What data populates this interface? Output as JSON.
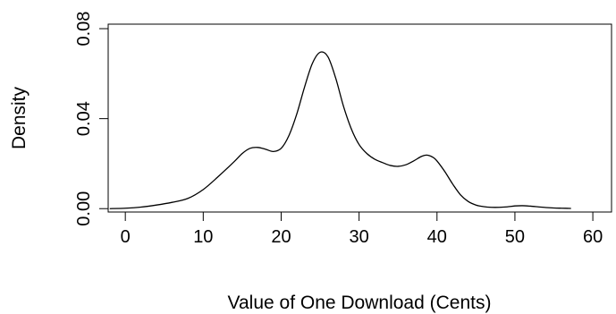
{
  "chart_data": {
    "type": "line",
    "title": "",
    "xlabel": "Value of One Download (Cents)",
    "ylabel": "Density",
    "xlim": [
      -2.2,
      62.4
    ],
    "ylim": [
      -0.0015,
      0.082
    ],
    "xticks": [
      0,
      10,
      20,
      30,
      40,
      50,
      60
    ],
    "yticks": [
      0.0,
      0.04,
      0.08
    ],
    "xtick_labels": [
      "0",
      "10",
      "20",
      "30",
      "40",
      "50",
      "60"
    ],
    "ytick_labels": [
      "0.00",
      "0.04",
      "0.08"
    ],
    "grid": false,
    "legend": "none",
    "line_color": "#000000",
    "series": [
      {
        "x": [
          -2,
          0,
          2,
          4,
          6,
          8,
          10,
          12,
          14,
          15,
          16,
          17,
          18,
          19,
          20,
          21,
          22,
          23,
          24,
          25,
          26,
          27,
          28,
          29,
          30,
          31,
          32,
          33,
          34,
          35,
          36,
          37,
          38,
          38.7,
          39.5,
          40,
          41,
          42,
          43,
          44,
          45,
          46,
          47,
          48,
          49,
          50,
          51,
          52,
          53,
          54,
          55,
          56,
          57.2
        ],
        "y": [
          0.0,
          0.0002,
          0.0007,
          0.0016,
          0.0028,
          0.0045,
          0.0085,
          0.0145,
          0.021,
          0.0245,
          0.0268,
          0.0272,
          0.0264,
          0.0254,
          0.0268,
          0.0325,
          0.042,
          0.054,
          0.0645,
          0.0695,
          0.0675,
          0.058,
          0.0455,
          0.0355,
          0.0285,
          0.0245,
          0.022,
          0.0205,
          0.0192,
          0.0188,
          0.0195,
          0.0212,
          0.0232,
          0.0238,
          0.0228,
          0.0212,
          0.0165,
          0.011,
          0.0062,
          0.0032,
          0.0016,
          0.0009,
          0.0006,
          0.0006,
          0.0008,
          0.0012,
          0.0013,
          0.0011,
          0.0008,
          0.0005,
          0.0003,
          0.0002,
          0.0001
        ]
      }
    ]
  }
}
